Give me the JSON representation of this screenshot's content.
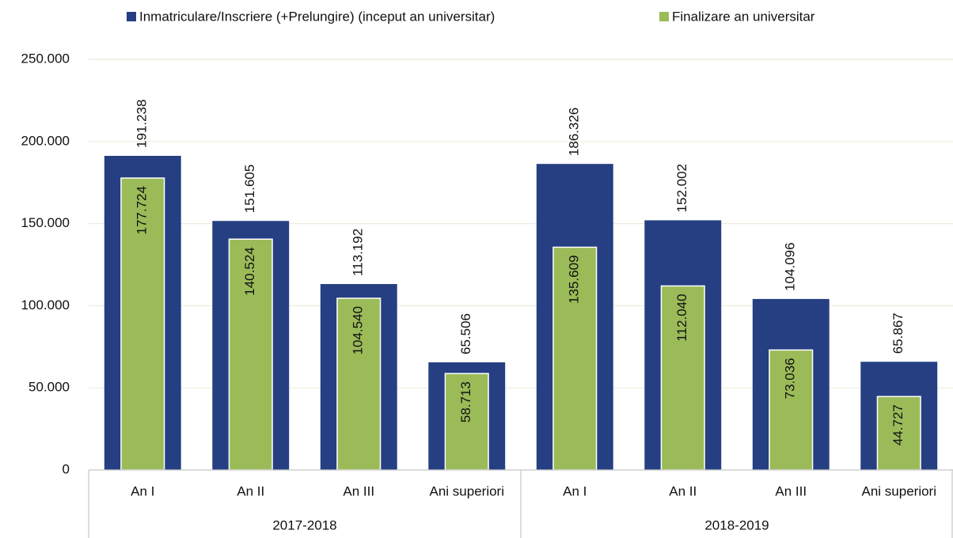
{
  "chart_data": {
    "type": "bar",
    "categories": [
      "An I",
      "An II",
      "An III",
      "Ani superiori",
      "An I",
      "An II",
      "An III",
      "Ani superiori"
    ],
    "groups": [
      "2017-2018",
      "2018-2019"
    ],
    "series": [
      {
        "name": "Inmatriculare/Inscriere (+Prelungire) (inceput an universitar)",
        "color": "#253f82",
        "values": [
          191238,
          151605,
          113192,
          65506,
          186326,
          152002,
          104096,
          65867
        ],
        "value_labels": [
          "191.238",
          "151.605",
          "113.192",
          "65.506",
          "186.326",
          "152.002",
          "104.096",
          "65.867"
        ]
      },
      {
        "name": "Finalizare an universitar",
        "color": "#9bbb59",
        "values": [
          177724,
          140524,
          104540,
          58713,
          135609,
          112040,
          73036,
          44727
        ],
        "value_labels": [
          "177.724",
          "140.524",
          "104.540",
          "58.713",
          "135.609",
          "112.040",
          "73.036",
          "44.727"
        ]
      }
    ],
    "ylim": [
      0,
      250000
    ],
    "yticks": [
      0,
      {
        "value": 50000,
        "label": "50.000"
      },
      {
        "value": 100000,
        "label": "100.000"
      },
      {
        "value": 150000,
        "label": "150.000"
      },
      {
        "value": 200000,
        "label": "200.000"
      },
      {
        "value": 250000,
        "label": "250.000"
      }
    ],
    "grid": true,
    "legend": "top"
  }
}
